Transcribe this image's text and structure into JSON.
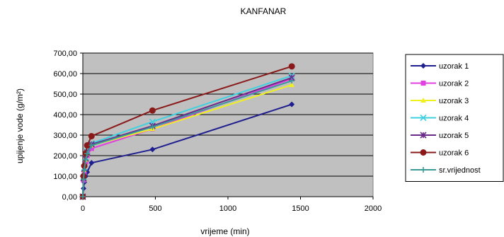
{
  "chart_data": {
    "type": "line",
    "title": "KANFANAR",
    "xlabel": "vrijeme (min)",
    "ylabel": "upijenje vode (g/m²)",
    "xlim": [
      0,
      2000
    ],
    "ylim": [
      0,
      700
    ],
    "x_ticks": [
      0,
      500,
      1000,
      1500,
      2000
    ],
    "x_tick_labels": [
      "0",
      "500",
      "1000",
      "1500",
      "2000"
    ],
    "y_ticks": [
      0,
      100,
      200,
      300,
      400,
      500,
      600,
      700
    ],
    "y_tick_labels": [
      "0,00",
      "100,00",
      "200,00",
      "300,00",
      "400,00",
      "500,00",
      "600,00",
      "700,00"
    ],
    "grid": true,
    "legend_position": "right",
    "plot_background": "#c0c0c0",
    "series": [
      {
        "name": "uzorak 1",
        "color": "#1f1f8f",
        "marker": "diamond",
        "x": [
          0,
          5,
          10,
          20,
          30,
          60,
          480,
          1440
        ],
        "y": [
          0,
          40,
          70,
          100,
          120,
          165,
          230,
          450
        ]
      },
      {
        "name": "uzorak 2",
        "color": "#e040e0",
        "marker": "square",
        "x": [
          0,
          5,
          10,
          20,
          30,
          60,
          480,
          1440
        ],
        "y": [
          0,
          80,
          120,
          170,
          200,
          235,
          330,
          575
        ]
      },
      {
        "name": "uzorak 3",
        "color": "#f0f020",
        "marker": "triangle",
        "x": [
          0,
          5,
          10,
          20,
          30,
          60,
          480,
          1440
        ],
        "y": [
          0,
          90,
          130,
          180,
          210,
          250,
          330,
          545
        ]
      },
      {
        "name": "uzorak 4",
        "color": "#40d0e0",
        "marker": "x",
        "x": [
          0,
          5,
          10,
          20,
          30,
          60,
          480,
          1440
        ],
        "y": [
          0,
          95,
          140,
          190,
          220,
          260,
          365,
          590
        ]
      },
      {
        "name": "uzorak 5",
        "color": "#6a2a8a",
        "marker": "star",
        "x": [
          0,
          5,
          10,
          20,
          30,
          60,
          480,
          1440
        ],
        "y": [
          0,
          90,
          135,
          185,
          215,
          255,
          345,
          580
        ]
      },
      {
        "name": "uzorak 6",
        "color": "#8a1a1a",
        "marker": "circle",
        "x": [
          0,
          5,
          10,
          20,
          30,
          60,
          480,
          1440
        ],
        "y": [
          0,
          100,
          150,
          210,
          250,
          295,
          420,
          635
        ]
      },
      {
        "name": "sr.vrijednost",
        "color": "#3a9a9a",
        "marker": "plus",
        "x": [
          0,
          5,
          10,
          20,
          30,
          60,
          480,
          1440
        ],
        "y": [
          0,
          85,
          130,
          180,
          210,
          250,
          340,
          565
        ]
      }
    ]
  }
}
